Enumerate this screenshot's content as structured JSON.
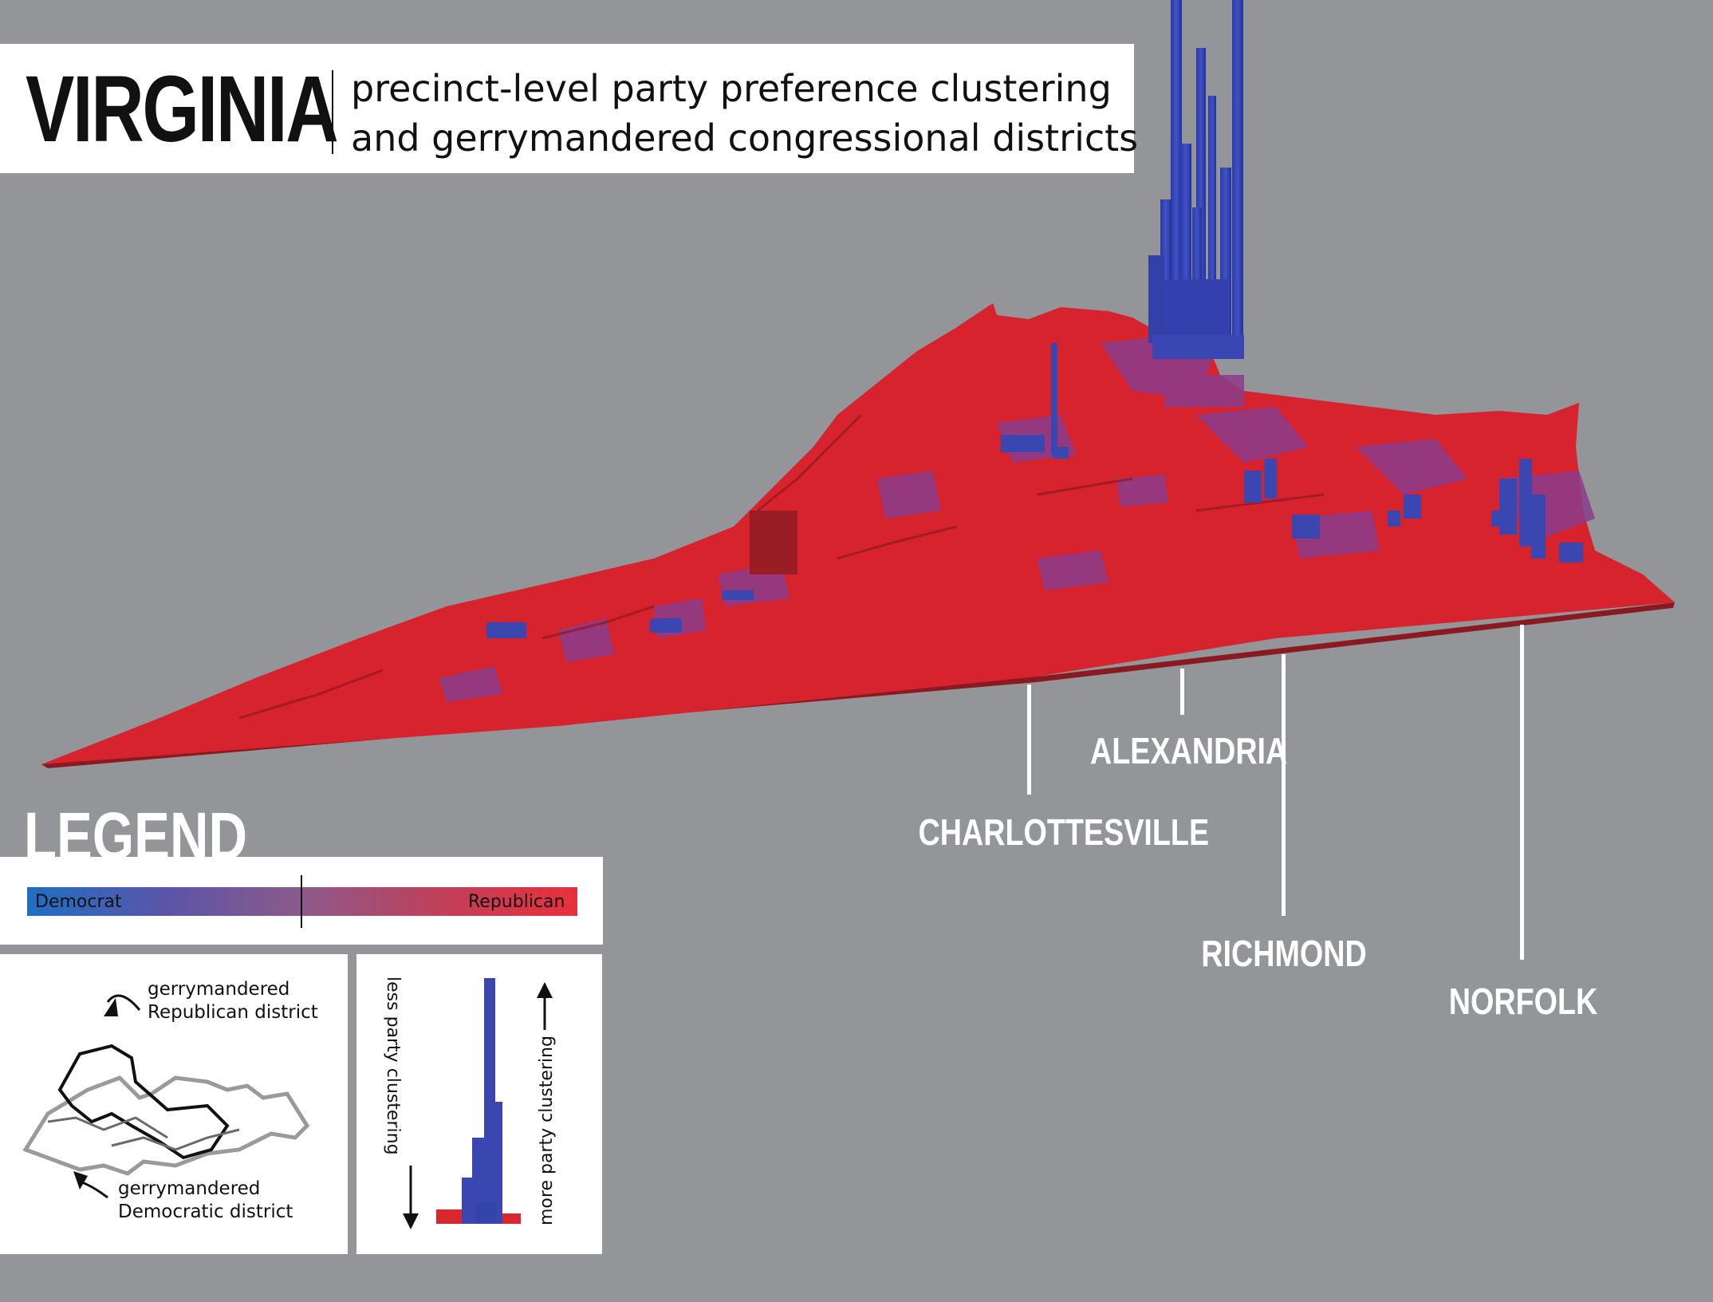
{
  "header": {
    "title": "VIRGINIA",
    "subtitle_line1": "precinct-level party preference clustering",
    "subtitle_line2": "and gerrymandered congressional districts"
  },
  "cities": [
    {
      "name": "CHARLOTTESVILLE"
    },
    {
      "name": "ALEXANDRIA"
    },
    {
      "name": "RICHMOND"
    },
    {
      "name": "NORFOLK"
    }
  ],
  "legend": {
    "title": "LEGEND",
    "scale_left": "Democrat",
    "scale_right": "Republican",
    "district_rep_line1": "gerrymandered",
    "district_rep_line2": "Republican district",
    "district_dem_line1": "gerrymandered",
    "district_dem_line2": "Democratic district",
    "less_clustering": "less  party clustering",
    "more_clustering": "more party clustering"
  },
  "colors": {
    "background": "#939598",
    "democrat": "#3a47b0",
    "republican": "#d9262f",
    "mixed": "#8a3f8f"
  }
}
